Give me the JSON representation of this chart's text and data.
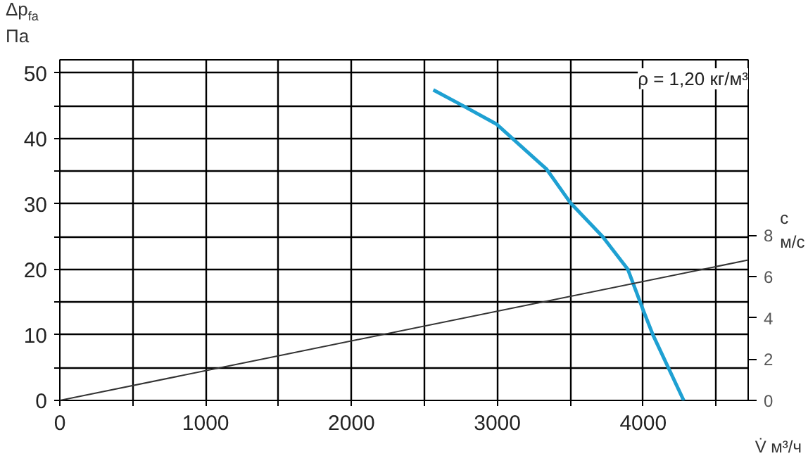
{
  "chart_data": {
    "type": "line",
    "xlabel": "V̇ м³/ч",
    "ylabel": "Δp$_{fa}$ Па",
    "y2label": "c м/с",
    "annotations": [
      "ρ = 1,20 кг/м³"
    ],
    "xlim": [
      0,
      4720
    ],
    "ylim": [
      0,
      52
    ],
    "y2lim": [
      0,
      16.5
    ],
    "xticks": [
      0,
      {
        "value": 500,
        "label": null
      },
      1000,
      {
        "value": 1500,
        "label": null
      },
      2000,
      {
        "value": 2500,
        "label": null
      },
      3000,
      {
        "value": 3500,
        "label": null
      },
      4000,
      {
        "value": 4500,
        "label": null
      }
    ],
    "yticks": [
      0,
      {
        "value": 5,
        "label": null
      },
      10,
      {
        "value": 15,
        "label": null
      },
      20,
      {
        "value": 25,
        "label": null
      },
      30,
      {
        "value": 35,
        "label": null
      },
      40,
      {
        "value": 45,
        "label": null
      },
      50
    ],
    "y2ticks": [
      0,
      2,
      4,
      6,
      8
    ],
    "grid": true,
    "series": [
      {
        "color": "#1ea0d2",
        "x": [
          2561,
          2763,
          2993,
          3338,
          3500,
          3722,
          3895,
          4000,
          4067,
          4278
        ],
        "values": [
          47.4,
          45,
          42.2,
          35.3,
          30.2,
          25,
          20,
          13.8,
          10,
          0
        ]
      },
      {
        "color": "#333333",
        "axis": "y2",
        "x": [
          0,
          4720
        ],
        "values": [
          0,
          6.8
        ]
      }
    ]
  }
}
